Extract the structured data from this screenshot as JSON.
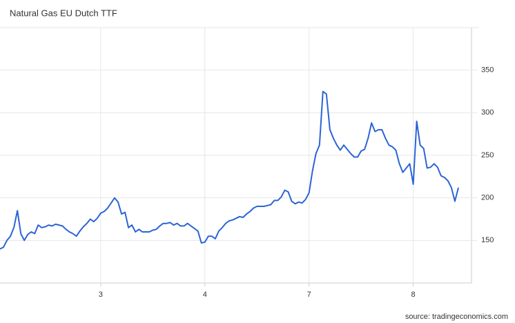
{
  "chart_data": {
    "type": "line",
    "title": "Natural Gas EU Dutch TTF",
    "source": "source: tradingeconomics.com",
    "categories": [
      null,
      null,
      null,
      null,
      null,
      null,
      null,
      null,
      null,
      null,
      null,
      null,
      null,
      null,
      null,
      null,
      null,
      null,
      null,
      null,
      null,
      null,
      null,
      null,
      null,
      null,
      null,
      null,
      null,
      "3",
      null,
      null,
      null,
      null,
      null,
      null,
      null,
      null,
      null,
      null,
      null,
      null,
      null,
      null,
      null,
      null,
      null,
      null,
      null,
      null,
      null,
      null,
      null,
      null,
      null,
      null,
      null,
      null,
      null,
      "4",
      null,
      null,
      null,
      null,
      null,
      null,
      null,
      null,
      null,
      null,
      null,
      null,
      null,
      null,
      null,
      null,
      null,
      null,
      null,
      null,
      null,
      null,
      null,
      null,
      null,
      null,
      null,
      null,
      null,
      "7",
      null,
      null,
      null,
      null,
      null,
      null,
      null,
      null,
      null,
      null,
      null,
      null,
      null,
      null,
      null,
      null,
      null,
      null,
      null,
      null,
      null,
      null,
      null,
      null,
      null,
      null,
      null,
      null,
      null,
      "8",
      null,
      null,
      null,
      null,
      null,
      null,
      null,
      null,
      null,
      null,
      null,
      null,
      null
    ],
    "series": [
      {
        "name": "Natural Gas EU Dutch TTF",
        "color": "#2b63d6",
        "values": [
          140,
          142,
          150,
          155,
          165,
          185,
          158,
          150,
          157,
          160,
          158,
          168,
          165,
          166,
          168,
          167,
          169,
          168,
          167,
          163,
          160,
          158,
          155,
          161,
          166,
          170,
          175,
          172,
          176,
          182,
          184,
          188,
          194,
          200,
          195,
          181,
          183,
          165,
          168,
          160,
          163,
          160,
          160,
          160,
          162,
          163,
          167,
          170,
          170,
          171,
          168,
          170,
          167,
          167,
          170,
          167,
          164,
          161,
          147,
          148,
          155,
          155,
          152,
          161,
          165,
          170,
          173,
          174,
          176,
          178,
          177,
          181,
          184,
          188,
          190,
          190,
          190,
          191,
          192,
          197,
          197,
          201,
          209,
          207,
          196,
          193,
          195,
          194,
          198,
          206,
          232,
          252,
          262,
          325,
          322,
          280,
          270,
          262,
          256,
          262,
          257,
          252,
          248,
          248,
          255,
          257,
          270,
          288,
          278,
          280,
          280,
          270,
          262,
          260,
          256,
          240,
          230,
          235,
          240,
          216,
          290,
          262,
          258,
          235,
          236,
          240,
          236,
          226,
          224,
          220,
          212,
          196,
          212
        ]
      }
    ],
    "ylim": [
      100,
      400
    ],
    "yticks": [
      150,
      200,
      250,
      300,
      350
    ],
    "grid": true
  }
}
